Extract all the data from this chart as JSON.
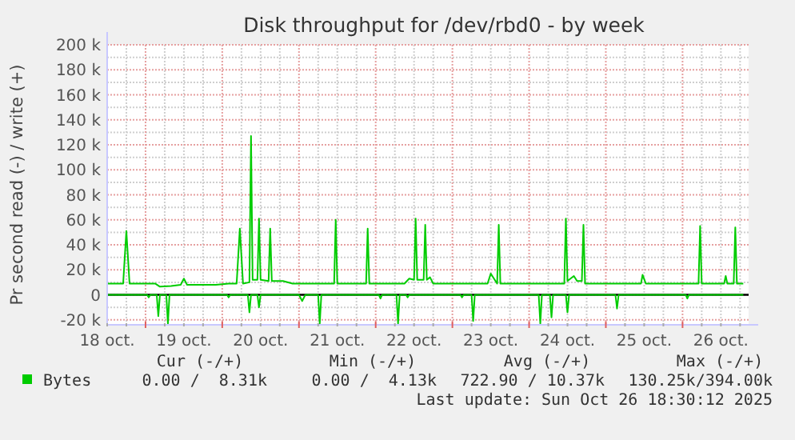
{
  "chart_data": {
    "type": "line",
    "title": "Disk throughput for /dev/rbd0 - by week",
    "ylabel": "Pr second read (-) / write (+)",
    "xlim": [
      "2025-10-18T12:00",
      "2025-10-26T20:40"
    ],
    "xticks": [
      {
        "value": "2025-10-18T12:00",
        "label": "18 oct."
      },
      {
        "value": "2025-10-19T12:00",
        "label": "19 oct."
      },
      {
        "value": "2025-10-20T12:00",
        "label": "20 oct."
      },
      {
        "value": "2025-10-21T12:00",
        "label": "21 oct."
      },
      {
        "value": "2025-10-22T12:00",
        "label": "22 oct."
      },
      {
        "value": "2025-10-23T12:00",
        "label": "23 oct."
      },
      {
        "value": "2025-10-24T12:00",
        "label": "24 oct."
      },
      {
        "value": "2025-10-25T12:00",
        "label": "25 oct."
      },
      {
        "value": "2025-10-26T12:00",
        "label": "26 oct."
      }
    ],
    "ylim": [
      -24000,
      200000
    ],
    "yticks": [
      {
        "value": -20000,
        "label": "-20 k"
      },
      {
        "value": 0,
        "label": "0"
      },
      {
        "value": 20000,
        "label": "20 k"
      },
      {
        "value": 40000,
        "label": "40 k"
      },
      {
        "value": 60000,
        "label": "60 k"
      },
      {
        "value": 80000,
        "label": "80 k"
      },
      {
        "value": 100000,
        "label": "100 k"
      },
      {
        "value": 120000,
        "label": "120 k"
      },
      {
        "value": 140000,
        "label": "140 k"
      },
      {
        "value": 160000,
        "label": "160 k"
      },
      {
        "value": 180000,
        "label": "180 k"
      },
      {
        "value": 200000,
        "label": "200 k"
      }
    ],
    "grid": true,
    "legend": "bottom left",
    "ref_lines": [
      {
        "axis": "y",
        "value": 0,
        "color": "#000000"
      }
    ],
    "series": [
      {
        "name": "Bytes",
        "color": "#00cc00",
        "x": [
          "2025-10-18T12:00",
          "2025-10-18T17:00",
          "2025-10-18T18:00",
          "2025-10-18T19:00",
          "2025-10-19T03:00",
          "2025-10-19T04:30",
          "2025-10-19T08:00",
          "2025-10-19T11:00",
          "2025-10-19T12:00",
          "2025-10-19T13:00",
          "2025-10-19T22:00",
          "2025-10-20T02:00",
          "2025-10-20T04:30",
          "2025-10-20T05:30",
          "2025-10-20T06:30",
          "2025-10-20T08:30",
          "2025-10-20T09:00",
          "2025-10-20T09:30",
          "2025-10-20T11:00",
          "2025-10-20T11:30",
          "2025-10-20T12:00",
          "2025-10-20T14:30",
          "2025-10-20T15:00",
          "2025-10-20T15:30",
          "2025-10-20T19:00",
          "2025-10-20T22:00",
          "2025-10-21T11:00",
          "2025-10-21T11:30",
          "2025-10-21T12:00",
          "2025-10-21T21:00",
          "2025-10-21T21:30",
          "2025-10-21T22:00",
          "2025-10-22T09:00",
          "2025-10-22T10:30",
          "2025-10-22T12:00",
          "2025-10-22T12:30",
          "2025-10-22T13:00",
          "2025-10-22T15:00",
          "2025-10-22T15:30",
          "2025-10-22T16:00",
          "2025-10-22T17:00",
          "2025-10-22T18:00",
          "2025-10-23T11:00",
          "2025-10-23T12:00",
          "2025-10-23T14:00",
          "2025-10-23T14:30",
          "2025-10-23T15:00",
          "2025-10-24T11:00",
          "2025-10-24T11:30",
          "2025-10-24T12:00",
          "2025-10-24T14:00",
          "2025-10-24T15:00",
          "2025-10-24T16:30",
          "2025-10-24T17:00",
          "2025-10-24T17:30",
          "2025-10-25T11:00",
          "2025-10-25T11:30",
          "2025-10-25T12:30",
          "2025-10-26T05:00",
          "2025-10-26T05:30",
          "2025-10-26T06:00",
          "2025-10-26T13:00",
          "2025-10-26T13:30",
          "2025-10-26T14:00",
          "2025-10-26T16:00",
          "2025-10-26T16:30",
          "2025-10-26T17:00",
          "2025-10-26T19:00"
        ],
        "values": [
          9000,
          9000,
          51000,
          9000,
          9000,
          6500,
          7000,
          8000,
          13000,
          8000,
          8000,
          9000,
          9000,
          53000,
          9000,
          10000,
          127000,
          12000,
          12000,
          61000,
          12000,
          11000,
          53000,
          11000,
          11000,
          9000,
          9000,
          60000,
          9000,
          9000,
          53000,
          9000,
          9000,
          13000,
          12000,
          61000,
          12000,
          12000,
          56000,
          12000,
          14000,
          9000,
          9000,
          17000,
          9000,
          56000,
          9000,
          9000,
          61000,
          11000,
          15000,
          11000,
          11000,
          56000,
          9000,
          9000,
          16000,
          9000,
          9000,
          55000,
          9000,
          9000,
          15000,
          9000,
          9000,
          54000,
          9000,
          9000
        ]
      },
      {
        "color": "#00cc00",
        "x": [
          "2025-10-18T12:00",
          "2025-10-19T00:30",
          "2025-10-19T01:00",
          "2025-10-19T01:30",
          "2025-10-19T03:30",
          "2025-10-19T04:00",
          "2025-10-19T04:30",
          "2025-10-19T06:30",
          "2025-10-19T07:00",
          "2025-10-19T07:30",
          "2025-10-20T01:30",
          "2025-10-20T02:00",
          "2025-10-20T02:30",
          "2025-10-20T08:00",
          "2025-10-20T08:30",
          "2025-10-20T09:00",
          "2025-10-20T11:00",
          "2025-10-20T11:30",
          "2025-10-20T12:00",
          "2025-10-21T00:00",
          "2025-10-21T01:00",
          "2025-10-21T02:00",
          "2025-10-21T06:00",
          "2025-10-21T06:30",
          "2025-10-21T07:00",
          "2025-10-22T01:00",
          "2025-10-22T01:30",
          "2025-10-22T02:00",
          "2025-10-22T06:30",
          "2025-10-22T07:00",
          "2025-10-22T07:30",
          "2025-10-22T09:30",
          "2025-10-22T10:00",
          "2025-10-22T10:30",
          "2025-10-23T02:30",
          "2025-10-23T03:00",
          "2025-10-23T03:30",
          "2025-10-23T06:00",
          "2025-10-23T06:30",
          "2025-10-23T07:00",
          "2025-10-24T03:00",
          "2025-10-24T03:30",
          "2025-10-24T04:00",
          "2025-10-24T06:30",
          "2025-10-24T07:00",
          "2025-10-24T07:30",
          "2025-10-24T11:30",
          "2025-10-24T12:00",
          "2025-10-24T12:30",
          "2025-10-25T03:00",
          "2025-10-25T03:30",
          "2025-10-25T04:00",
          "2025-10-26T01:00",
          "2025-10-26T01:30",
          "2025-10-26T02:00",
          "2025-10-26T19:00"
        ],
        "values": [
          0,
          0,
          -2000,
          0,
          0,
          -17000,
          0,
          0,
          -23000,
          0,
          0,
          -2000,
          0,
          0,
          -14000,
          0,
          0,
          -10000,
          0,
          0,
          -5000,
          0,
          0,
          -23000,
          0,
          0,
          -3000,
          0,
          0,
          -23000,
          0,
          0,
          -2000,
          0,
          0,
          -2000,
          0,
          0,
          -21000,
          0,
          0,
          -23000,
          0,
          0,
          -18000,
          0,
          0,
          -14000,
          0,
          0,
          -11000,
          0,
          0,
          -3000,
          0,
          0
        ]
      }
    ],
    "annotations": [
      "Cur (-/+)",
      "Min (-/+)",
      "Avg (-/+)",
      "Max (-/+)",
      "0.00 /  8.31k",
      "0.00 /  4.13k",
      "722.90 / 10.37k",
      "130.25k/394.00k",
      "Last update: Sun Oct 26 18:30:12 2025"
    ]
  }
}
